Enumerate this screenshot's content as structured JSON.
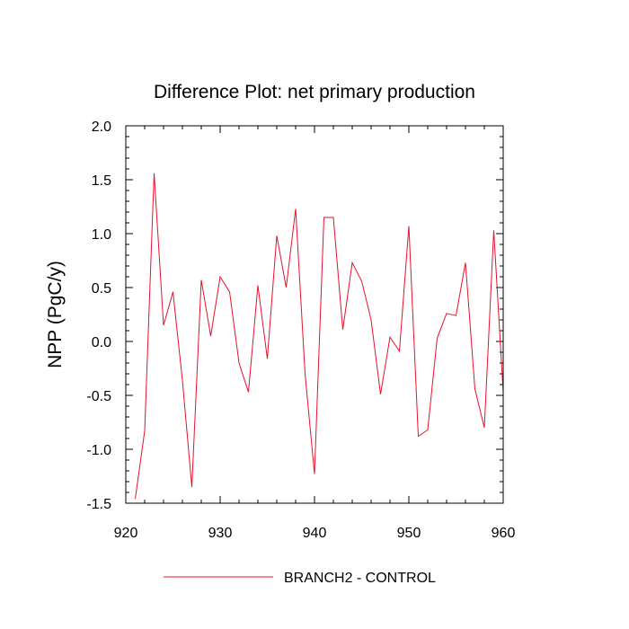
{
  "chart_data": {
    "type": "line",
    "title": "Difference Plot: net primary production",
    "xlabel": "",
    "ylabel": "NPP  (PgC/y)",
    "xlim": [
      920,
      960
    ],
    "ylim": [
      -1.5,
      2.0
    ],
    "x_ticks": [
      920,
      930,
      940,
      950,
      960
    ],
    "y_ticks": [
      -1.5,
      -1.0,
      -0.5,
      0.0,
      0.5,
      1.0,
      1.5,
      2.0
    ],
    "x_tick_labels": [
      "920",
      "930",
      "940",
      "950",
      "960"
    ],
    "y_tick_labels": [
      "-1.5",
      "-1.0",
      "-0.5",
      "0.0",
      "0.5",
      "1.0",
      "1.5",
      "2.0"
    ],
    "grid": false,
    "legend_position": "bottom",
    "series": [
      {
        "name": "BRANCH2 - CONTROL",
        "color": "#e8102a",
        "x": [
          921,
          922,
          923,
          924,
          925,
          926,
          927,
          928,
          929,
          930,
          931,
          932,
          933,
          934,
          935,
          936,
          937,
          938,
          939,
          940,
          941,
          942,
          943,
          944,
          945,
          946,
          947,
          948,
          949,
          950,
          951,
          952,
          953,
          954,
          955,
          956,
          957,
          958,
          959,
          960
        ],
        "y": [
          -1.46,
          -0.83,
          1.56,
          0.15,
          0.46,
          -0.36,
          -1.35,
          0.57,
          0.05,
          0.6,
          0.46,
          -0.2,
          -0.47,
          0.52,
          -0.16,
          0.98,
          0.5,
          1.23,
          -0.3,
          -1.23,
          1.15,
          1.15,
          0.11,
          0.73,
          0.56,
          0.2,
          -0.49,
          0.04,
          -0.09,
          1.07,
          -0.88,
          -0.82,
          0.03,
          0.26,
          0.24,
          0.73,
          -0.44,
          -0.8,
          1.03,
          -0.47
        ]
      }
    ]
  }
}
